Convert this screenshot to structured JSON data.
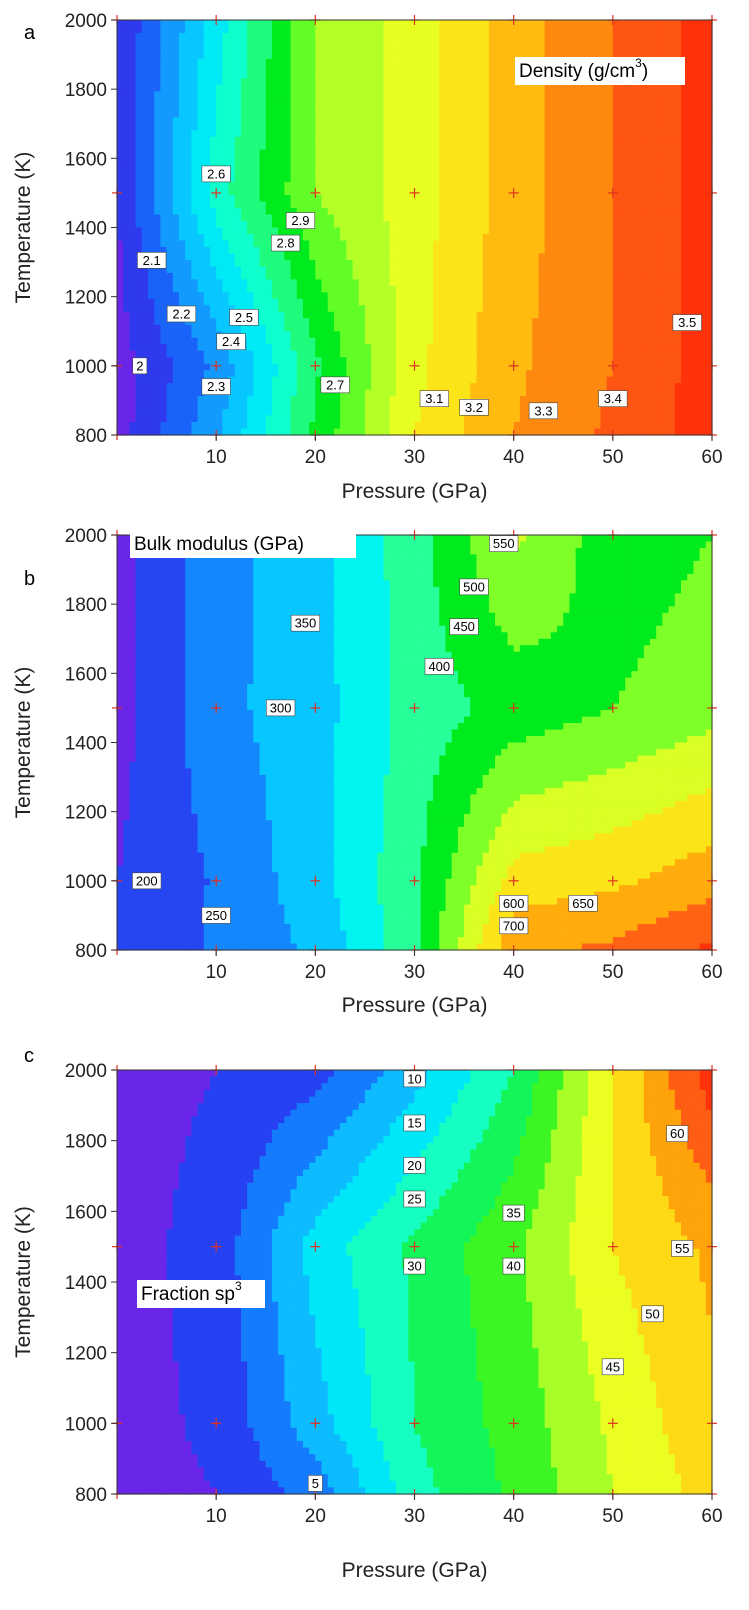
{
  "chart_data": [
    {
      "type": "heatmap",
      "panel_letter": "a",
      "title": "Density (g/cm",
      "title_superscript": "3",
      "title_suffix": ")",
      "title_position": "top-right",
      "xlabel": "Pressure (GPa)",
      "ylabel": "Temperature (K)",
      "xlim": [
        0,
        60
      ],
      "ylim": [
        800,
        2000
      ],
      "x_ticks": [
        "10",
        "20",
        "30",
        "40",
        "50",
        "60"
      ],
      "y_ticks": [
        "800",
        "1000",
        "1200",
        "1400",
        "1600",
        "1800",
        "2000"
      ],
      "x": [
        0,
        10,
        20,
        30,
        40,
        50,
        60
      ],
      "y": [
        800,
        1000,
        1500,
        2000
      ],
      "z": [
        [
          1.95,
          2.28,
          2.72,
          3.1,
          3.3,
          3.42,
          3.55
        ],
        [
          1.95,
          2.22,
          2.68,
          3.07,
          3.28,
          3.4,
          3.55
        ],
        [
          2.0,
          2.55,
          2.9,
          3.05,
          3.25,
          3.4,
          3.55
        ],
        [
          2.0,
          2.45,
          2.9,
          3.05,
          3.25,
          3.4,
          3.55
        ]
      ],
      "levels": [
        2.0,
        2.1,
        2.2,
        2.3,
        2.4,
        2.5,
        2.6,
        2.7,
        2.8,
        2.9,
        3.0,
        3.1,
        3.2,
        3.3,
        3.4,
        3.5
      ],
      "contour_labels": [
        {
          "text": "2.6",
          "x": 10,
          "y": 1555
        },
        {
          "text": "2.9",
          "x": 18.5,
          "y": 1420
        },
        {
          "text": "2.8",
          "x": 17,
          "y": 1355
        },
        {
          "text": "2.1",
          "x": 3.5,
          "y": 1305
        },
        {
          "text": "2.2",
          "x": 6.5,
          "y": 1150
        },
        {
          "text": "2.5",
          "x": 12.8,
          "y": 1140
        },
        {
          "text": "2.4",
          "x": 11.5,
          "y": 1070
        },
        {
          "text": "2",
          "x": 2.3,
          "y": 1000
        },
        {
          "text": "2.3",
          "x": 10,
          "y": 940
        },
        {
          "text": "2.7",
          "x": 22,
          "y": 945
        },
        {
          "text": "3.1",
          "x": 32,
          "y": 905
        },
        {
          "text": "3.2",
          "x": 36,
          "y": 880
        },
        {
          "text": "3.3",
          "x": 43,
          "y": 870
        },
        {
          "text": "3.4",
          "x": 50,
          "y": 905
        },
        {
          "text": "3.5",
          "x": 57.5,
          "y": 1125
        }
      ],
      "data_points_x": [
        0,
        10,
        20,
        30,
        40,
        50,
        60
      ],
      "data_points_y": [
        800,
        1000,
        1500,
        2000
      ]
    },
    {
      "type": "heatmap",
      "panel_letter": "b",
      "title": "Bulk modulus (GPa)",
      "title_superscript": "",
      "title_suffix": "",
      "title_position": "top-left",
      "xlabel": "Pressure (GPa)",
      "ylabel": "Temperature (K)",
      "xlim": [
        0,
        60
      ],
      "ylim": [
        800,
        2000
      ],
      "x_ticks": [
        "10",
        "20",
        "30",
        "40",
        "50",
        "60"
      ],
      "y_ticks": [
        "800",
        "1000",
        "1200",
        "1400",
        "1600",
        "1800",
        "2000"
      ],
      "x": [
        0,
        10,
        20,
        30,
        40,
        50,
        60
      ],
      "y": [
        800,
        1000,
        1500,
        2000
      ],
      "z": [
        [
          220,
          255,
          310,
          440,
          690,
          710,
          760
        ],
        [
          200,
          255,
          330,
          440,
          620,
          640,
          680
        ],
        [
          180,
          285,
          330,
          420,
          470,
          500,
          530
        ],
        [
          180,
          280,
          330,
          430,
          560,
          470,
          500
        ]
      ],
      "levels": [
        200,
        250,
        300,
        350,
        400,
        450,
        500,
        550,
        600,
        650,
        700,
        750
      ],
      "contour_labels": [
        {
          "text": "550",
          "x": 39,
          "y": 1975
        },
        {
          "text": "500",
          "x": 36,
          "y": 1850
        },
        {
          "text": "350",
          "x": 19,
          "y": 1745
        },
        {
          "text": "450",
          "x": 35,
          "y": 1735
        },
        {
          "text": "400",
          "x": 32.5,
          "y": 1620
        },
        {
          "text": "300",
          "x": 16.5,
          "y": 1500
        },
        {
          "text": "200",
          "x": 3,
          "y": 1000
        },
        {
          "text": "250",
          "x": 10,
          "y": 900
        },
        {
          "text": "600",
          "x": 40,
          "y": 935
        },
        {
          "text": "650",
          "x": 47,
          "y": 935
        },
        {
          "text": "700",
          "x": 40,
          "y": 870
        }
      ],
      "data_points_x": [
        0,
        10,
        20,
        30,
        40,
        50,
        60
      ],
      "data_points_y": [
        800,
        1000,
        1500,
        2000
      ]
    },
    {
      "type": "heatmap",
      "panel_letter": "c",
      "title": "Fraction sp",
      "title_superscript": "3",
      "title_suffix": "",
      "title_position": "middle-left",
      "xlabel": "Pressure (GPa)",
      "ylabel": "Temperature (K)",
      "xlim": [
        0,
        60
      ],
      "ylim": [
        800,
        2000
      ],
      "x_ticks": [
        "10",
        "20",
        "30",
        "40",
        "50",
        "60"
      ],
      "y_ticks": [
        "800",
        "1000",
        "1200",
        "1400",
        "1600",
        "1800",
        "2000"
      ],
      "x": [
        0,
        10,
        20,
        30,
        40,
        50,
        60
      ],
      "y": [
        800,
        1000,
        1500,
        2000
      ],
      "z": [
        [
          3,
          5,
          12,
          28,
          36,
          45,
          52
        ],
        [
          3,
          6,
          18,
          30,
          37,
          46,
          54
        ],
        [
          3,
          7,
          22,
          31,
          39,
          50,
          56
        ],
        [
          3,
          5,
          8,
          18,
          30,
          50,
          68
        ]
      ],
      "levels": [
        5,
        10,
        15,
        20,
        25,
        30,
        35,
        40,
        45,
        50,
        55,
        60,
        65
      ],
      "contour_labels": [
        {
          "text": "10",
          "x": 30,
          "y": 1975
        },
        {
          "text": "15",
          "x": 30,
          "y": 1850
        },
        {
          "text": "60",
          "x": 56.5,
          "y": 1820
        },
        {
          "text": "20",
          "x": 30,
          "y": 1730
        },
        {
          "text": "25",
          "x": 30,
          "y": 1635
        },
        {
          "text": "35",
          "x": 40,
          "y": 1595
        },
        {
          "text": "55",
          "x": 57,
          "y": 1495
        },
        {
          "text": "30",
          "x": 30,
          "y": 1445
        },
        {
          "text": "40",
          "x": 40,
          "y": 1445
        },
        {
          "text": "50",
          "x": 54,
          "y": 1310
        },
        {
          "text": "45",
          "x": 50,
          "y": 1160
        },
        {
          "text": "5",
          "x": 20,
          "y": 830
        }
      ],
      "data_points_x": [
        0,
        10,
        20,
        30,
        40,
        50,
        60
      ],
      "data_points_y": [
        800,
        1000,
        1500,
        2000
      ]
    }
  ]
}
